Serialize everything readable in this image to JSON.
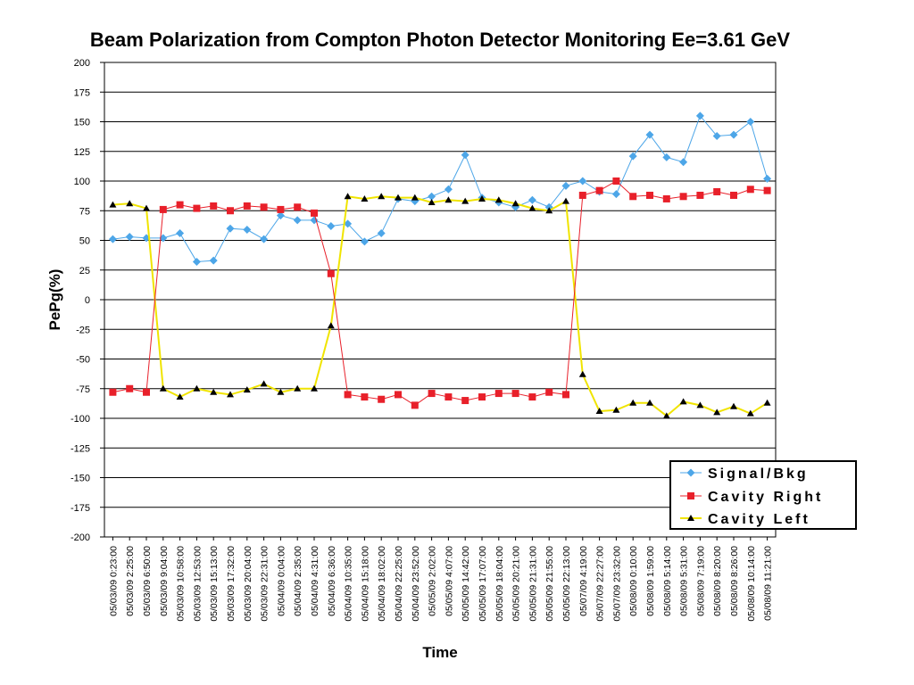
{
  "chart_data": {
    "type": "line",
    "title": "Beam Polarization from Compton Photon Detector Monitoring Ee=3.61 GeV",
    "xlabel": "Time",
    "ylabel": "PePg(%)",
    "ylim": [
      -200,
      200
    ],
    "yticks": [
      "200",
      "175",
      "150",
      "125",
      "100",
      "75",
      "50",
      "25",
      "0",
      "-25",
      "-50",
      "-75",
      "-100",
      "-125",
      "-150",
      "-175",
      "-200"
    ],
    "grid": true,
    "legend_position": "bottom-right",
    "categories": [
      "05/03/09 0:23:00",
      "05/03/09 2:25:00",
      "05/03/09 6:50:00",
      "05/03/09 9:04:00",
      "05/03/09 10:58:00",
      "05/03/09 12:53:00",
      "05/03/09 15:13:00",
      "05/03/09 17:32:00",
      "05/03/09 20:04:00",
      "05/03/09 22:31:00",
      "05/04/09 0:04:00",
      "05/04/09 2:35:00",
      "05/04/09 4:31:00",
      "05/04/09 6:36:00",
      "05/04/09 10:35:00",
      "05/04/09 15:18:00",
      "05/04/09 18:02:00",
      "05/04/09 22:25:00",
      "05/04/09 23:52:00",
      "05/05/09 2:02:00",
      "05/05/09 4:07:00",
      "05/05/09 14:42:00",
      "05/05/09 17:07:00",
      "05/05/09 18:04:00",
      "05/05/09 20:21:00",
      "05/05/09 21:31:00",
      "05/05/09 21:55:00",
      "05/05/09 22:13:00",
      "05/07/09 4:19:00",
      "05/07/09 22:27:00",
      "05/07/09 23:32:00",
      "05/08/09 0:10:00",
      "05/08/09 1:59:00",
      "05/08/09 5:14:00",
      "05/08/09 5:31:00",
      "05/08/09 7:19:00",
      "05/08/09 8:20:00",
      "05/08/09 8:26:00",
      "05/08/09 10:14:00",
      "05/08/09 11:21:00"
    ],
    "series": [
      {
        "name": "Signal/Bkg",
        "color": "#4da6e8",
        "marker": "diamond",
        "values": [
          51,
          53,
          52,
          52,
          56,
          32,
          33,
          60,
          59,
          51,
          71,
          67,
          67,
          62,
          64,
          49,
          56,
          85,
          83,
          87,
          93,
          122,
          86,
          82,
          78,
          84,
          78,
          96,
          100,
          91,
          89,
          121,
          139,
          120,
          116,
          155,
          138,
          139,
          150,
          102
        ]
      },
      {
        "name": "Cavity Right",
        "color": "#e8202a",
        "marker": "square",
        "values": [
          -78,
          -75,
          -78,
          76,
          80,
          77,
          79,
          75,
          79,
          78,
          76,
          78,
          73,
          22,
          -80,
          -82,
          -84,
          -80,
          -89,
          -79,
          -82,
          -85,
          -82,
          -79,
          -79,
          -82,
          -78,
          -80,
          88,
          92,
          100,
          87,
          88,
          85,
          87,
          88,
          91,
          88,
          93,
          92
        ]
      },
      {
        "name": "Cavity Left",
        "color": "#f0e400",
        "marker": "triangle",
        "values": [
          80,
          81,
          77,
          -75,
          -82,
          -75,
          -78,
          -80,
          -76,
          -71,
          -78,
          -75,
          -75,
          -22,
          87,
          85,
          87,
          86,
          86,
          82,
          84,
          83,
          85,
          84,
          81,
          77,
          75,
          83,
          -63,
          -94,
          -93,
          -87,
          -87,
          -98,
          -86,
          -89,
          -95,
          -90,
          -96,
          -87
        ]
      }
    ]
  }
}
